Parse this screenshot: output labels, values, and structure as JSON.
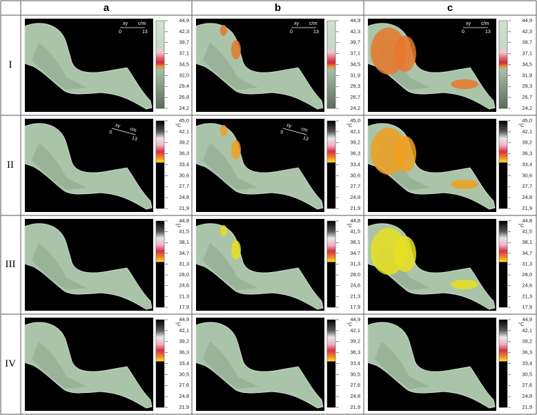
{
  "columns": [
    "a",
    "b",
    "c"
  ],
  "rows": [
    {
      "label": "I",
      "cells": [
        {
          "scale": [
            "44,9",
            "42,3",
            "39,7",
            "37,1",
            "34,5",
            "32,0",
            "29,4",
            "26,8",
            "24,2"
          ],
          "marker": {
            "xy": "xy",
            "unit": "c/m",
            "start": "0",
            "end": "13"
          }
        },
        {
          "scale": [
            "44,9",
            "42,3",
            "39,7",
            "37,1",
            "34,5",
            "31,9",
            "29,3",
            "26,7",
            "24,2"
          ],
          "marker": {
            "xy": "xy",
            "unit": "c/m",
            "start": "0",
            "end": "13"
          }
        },
        {
          "scale": [
            "44,9",
            "42,3",
            "39,7",
            "37,1",
            "34,5",
            "31,9",
            "29,3",
            "26,7",
            "24,2"
          ],
          "marker": {
            "xy": "xy",
            "unit": "c/m",
            "start": "0",
            "end": "13"
          }
        }
      ]
    },
    {
      "label": "II",
      "cells": [
        {
          "scale": [
            "45,0",
            "42,1",
            "39,2",
            "36,3",
            "33,4",
            "30,6",
            "27,7",
            "24,8",
            "21,9"
          ],
          "unit": "°C",
          "marker": {
            "xy": "xy",
            "unit": "cm",
            "start": "0",
            "end": "13"
          }
        },
        {
          "scale": [
            "45,0",
            "42,1",
            "39,2",
            "36,3",
            "33,4",
            "30,6",
            "27,7",
            "24,8",
            "21,9"
          ],
          "unit": "°C",
          "marker": {
            "xy": "xy",
            "unit": "cm",
            "start": "0",
            "end": "13"
          }
        },
        {
          "scale": [
            "45,0",
            "42,1",
            "39,2",
            "36,3",
            "33,4",
            "30,6",
            "27,7",
            "24,8",
            "21,9"
          ],
          "unit": "°C"
        }
      ]
    },
    {
      "label": "III",
      "cells": [
        {
          "scale": [
            "44,8",
            "41,5",
            "38,1",
            "34,7",
            "31,3",
            "28,0",
            "24,6",
            "21,3",
            "17,9"
          ],
          "unit": "°C"
        },
        {
          "scale": [
            "44,8",
            "41,5",
            "38,1",
            "34,7",
            "31,3",
            "28,0",
            "24,6",
            "21,3",
            "17,9"
          ],
          "unit": "°C"
        },
        {
          "scale": [
            "44,8",
            "41,5",
            "38,1",
            "34,7",
            "31,3",
            "28,0",
            "24,6",
            "21,3",
            "17,9"
          ],
          "unit": "°C"
        }
      ]
    },
    {
      "label": "IV",
      "cells": [
        {
          "scale": [
            "44,9",
            "42,1",
            "39,2",
            "36,3",
            "33,4",
            "30,5",
            "27,6",
            "24,8",
            "21,9"
          ],
          "unit": "°C"
        },
        {
          "scale": [
            "44,9",
            "42,1",
            "39,2",
            "36,3",
            "33,4",
            "30,5",
            "27,6",
            "24,8",
            "21,9"
          ],
          "unit": "°C"
        },
        {
          "scale": [
            "44,9",
            "42,1",
            "39,2",
            "36,3",
            "33,4",
            "30,5",
            "27,6",
            "24,8",
            "21,9"
          ],
          "unit": "°C"
        }
      ]
    }
  ]
}
